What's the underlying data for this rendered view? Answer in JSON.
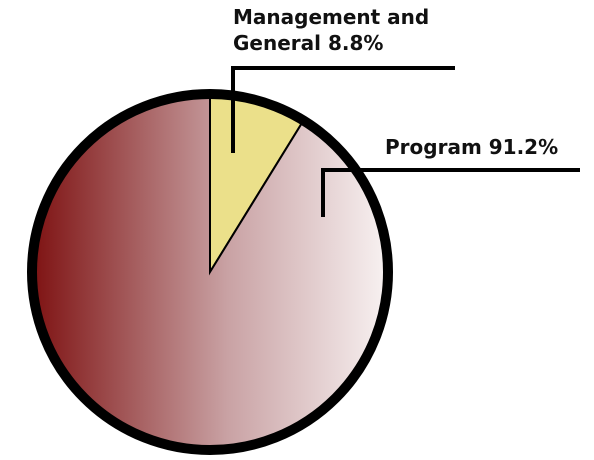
{
  "chart_data": {
    "type": "pie",
    "categories": [
      "Management and General",
      "Program"
    ],
    "values": [
      8.8,
      91.2
    ],
    "value_labels": [
      "8.8%",
      "91.2%"
    ],
    "colors": [
      "#ebe08a",
      "#7e1212"
    ]
  }
}
